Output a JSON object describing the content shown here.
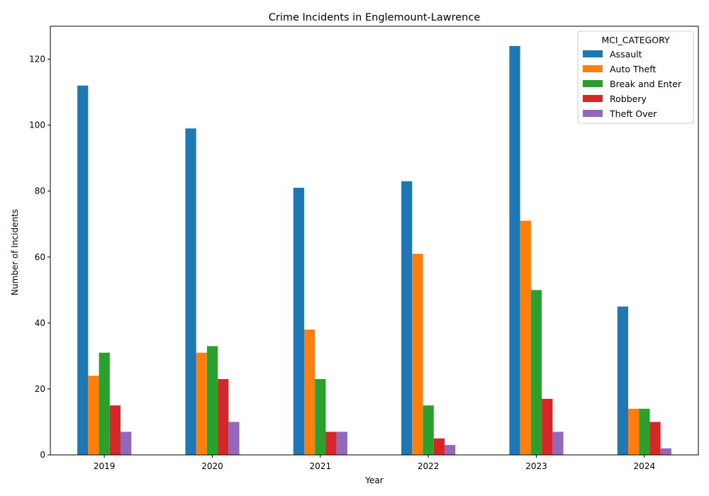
{
  "chart_data": {
    "type": "bar",
    "title": "Crime Incidents in Englemount-Lawrence",
    "xlabel": "Year",
    "ylabel": "Number of Incidents",
    "categories": [
      "2019",
      "2020",
      "2021",
      "2022",
      "2023",
      "2024"
    ],
    "ylim": [
      0,
      130
    ],
    "yticks": [
      0,
      20,
      40,
      60,
      80,
      100,
      120
    ],
    "grid": false,
    "legend": {
      "title": "MCI_CATEGORY",
      "placement": "top-right"
    },
    "series": [
      {
        "name": "Assault",
        "color": "#1f77b4",
        "values": [
          112,
          99,
          81,
          83,
          124,
          45
        ]
      },
      {
        "name": "Auto Theft",
        "color": "#ff7f0e",
        "values": [
          24,
          31,
          38,
          61,
          71,
          14
        ]
      },
      {
        "name": "Break and Enter",
        "color": "#2ca02c",
        "values": [
          31,
          33,
          23,
          15,
          50,
          14
        ]
      },
      {
        "name": "Robbery",
        "color": "#d62728",
        "values": [
          15,
          23,
          7,
          5,
          17,
          10
        ]
      },
      {
        "name": "Theft Over",
        "color": "#9467bd",
        "values": [
          7,
          10,
          7,
          3,
          7,
          2
        ]
      }
    ]
  }
}
